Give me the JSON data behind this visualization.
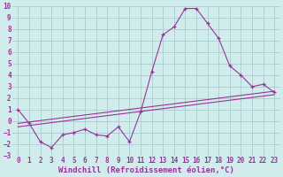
{
  "xlabel": "Windchill (Refroidissement éolien,°C)",
  "ylabel": "",
  "background_color": "#d0ecec",
  "grid_color": "#a8cccc",
  "line_color": "#993399",
  "xlim": [
    -0.5,
    23.5
  ],
  "ylim": [
    -3,
    10
  ],
  "xticks": [
    0,
    1,
    2,
    3,
    4,
    5,
    6,
    7,
    8,
    9,
    10,
    11,
    12,
    13,
    14,
    15,
    16,
    17,
    18,
    19,
    20,
    21,
    22,
    23
  ],
  "yticks": [
    -3,
    -2,
    -1,
    0,
    1,
    2,
    3,
    4,
    5,
    6,
    7,
    8,
    9,
    10
  ],
  "main_line_x": [
    0,
    1,
    2,
    3,
    4,
    5,
    6,
    7,
    8,
    9,
    10,
    11,
    12,
    13,
    14,
    15,
    16,
    17,
    18,
    19,
    20,
    21,
    22,
    23
  ],
  "main_line_y": [
    1.0,
    -0.2,
    -1.8,
    -2.3,
    -1.2,
    -1.0,
    -0.7,
    -1.2,
    -1.3,
    -0.5,
    -1.8,
    0.8,
    4.3,
    7.5,
    8.2,
    9.8,
    9.8,
    8.5,
    7.2,
    4.8,
    4.0,
    3.0,
    3.2,
    2.5
  ],
  "reg_line1_x": [
    0,
    23
  ],
  "reg_line1_y": [
    -0.5,
    2.3
  ],
  "reg_line2_x": [
    0,
    23
  ],
  "reg_line2_y": [
    -0.2,
    2.6
  ],
  "tick_fontsize": 5.5,
  "label_fontsize": 6.5
}
